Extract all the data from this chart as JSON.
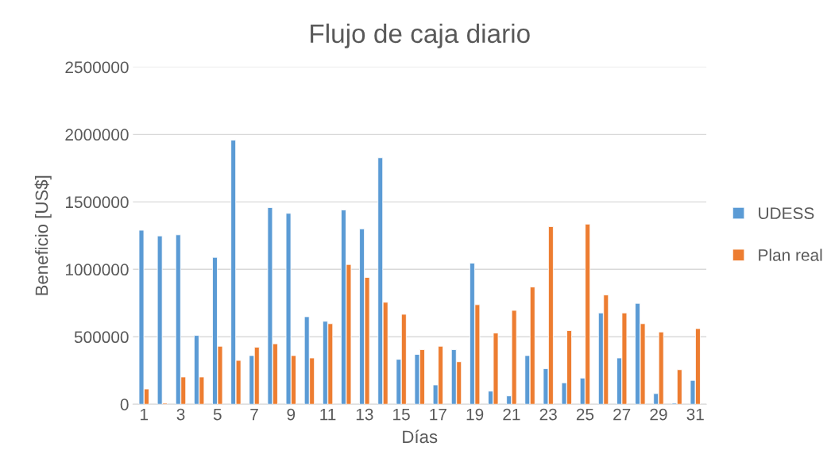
{
  "chart_data": {
    "type": "bar",
    "title": "Flujo de caja diario",
    "xlabel": "Días",
    "ylabel": "Beneficio [US$]",
    "categories": [
      "1",
      null,
      "3",
      null,
      "5",
      null,
      "7",
      null,
      "9",
      null,
      "11",
      null,
      "13",
      null,
      "15",
      null,
      "17",
      null,
      "19",
      null,
      "21",
      null,
      "23",
      null,
      "25",
      null,
      "27",
      null,
      "29",
      null,
      "31"
    ],
    "series": [
      {
        "name": "UDESS",
        "color": "#5b9bd5",
        "values": [
          1290000,
          1248000,
          1256000,
          510000,
          1089000,
          1958000,
          361000,
          1458000,
          1415000,
          649000,
          615000,
          1440000,
          1300000,
          1827000,
          333000,
          369000,
          143000,
          405000,
          1046000,
          97000,
          62000,
          361000,
          264000,
          159000,
          194000,
          677000,
          343000,
          748000,
          79000,
          8000,
          177000
        ]
      },
      {
        "name": "Plan real",
        "color": "#ed7d31",
        "values": [
          113000,
          8000,
          202000,
          202000,
          430000,
          325000,
          423000,
          448000,
          361000,
          343000,
          597000,
          1036000,
          940000,
          756000,
          667000,
          405000,
          430000,
          315000,
          738000,
          528000,
          696000,
          869000,
          1317000,
          546000,
          1335000,
          810000,
          677000,
          597000,
          536000,
          256000,
          561000
        ]
      }
    ],
    "ylim": [
      0,
      2500000
    ],
    "yticks": [
      0,
      500000,
      1000000,
      1500000,
      2000000,
      2500000
    ],
    "grid": "y",
    "legend": "right"
  }
}
